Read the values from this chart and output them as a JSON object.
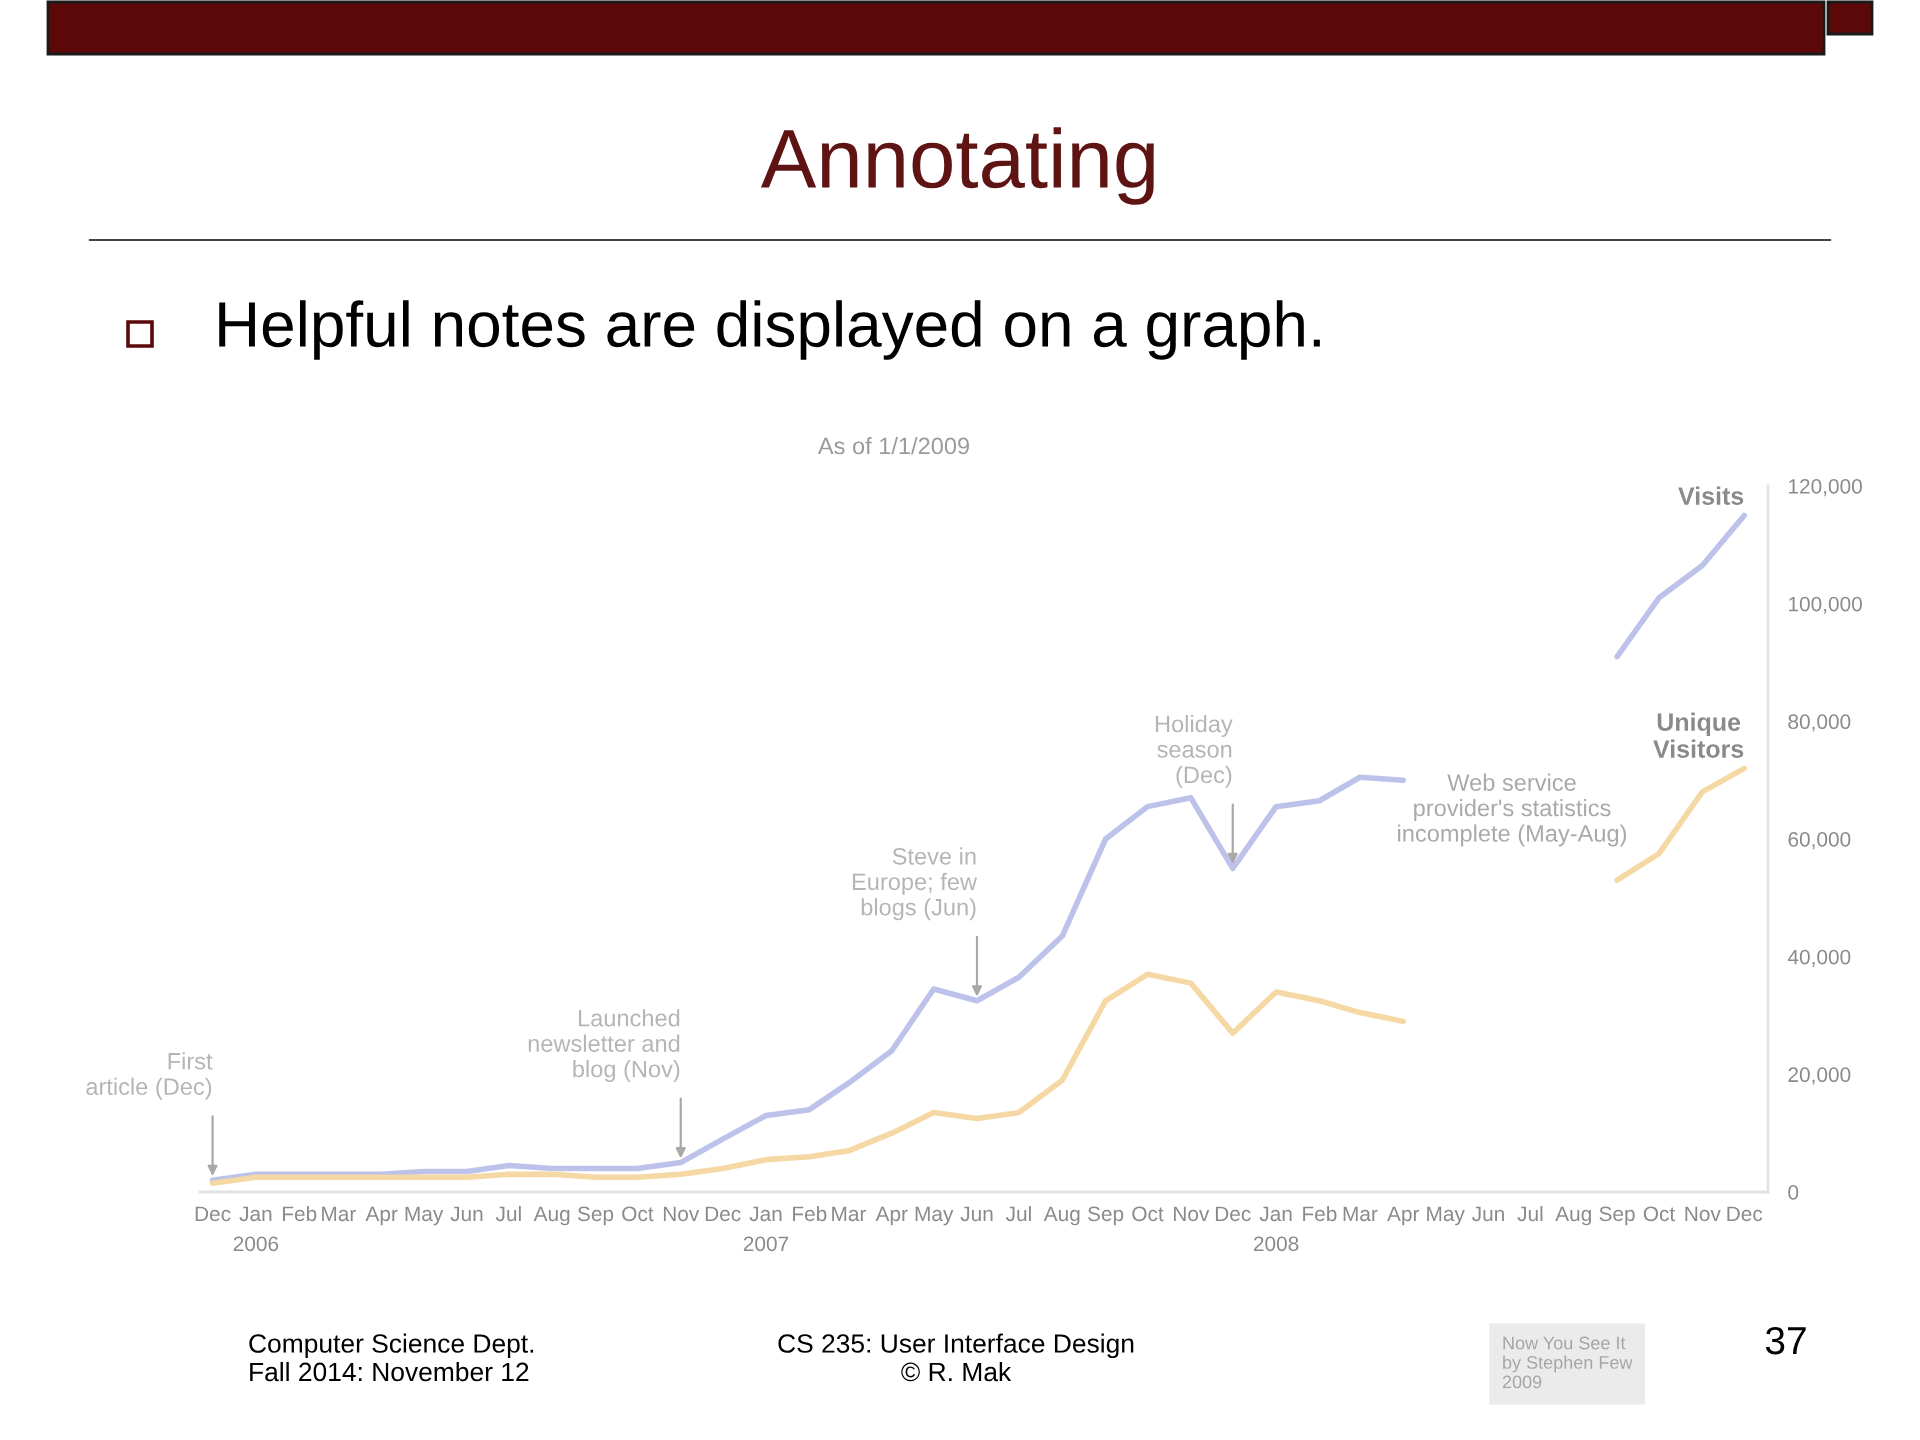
{
  "chart_data": {
    "type": "line",
    "title": "Annotating",
    "subtitle": "Helpful notes are displayed on a graph.",
    "annotations": [
      {
        "text": "First\narticle (Dec)",
        "x": "2005-12",
        "y": 2000
      },
      {
        "text": "Launched\nnewsletter and\nblog (Nov)",
        "x": "2006-11",
        "y": 5000
      },
      {
        "text": "Steve in\nEurope; few\nblogs (Jun)",
        "x": "2007-06",
        "y": 32500
      },
      {
        "text": "Holiday\nseason\n(Dec)",
        "x": "2007-12",
        "y": 55000
      },
      "As of 1/1/2009",
      "Web service\nprovider's statistics\nincomplete (May-Aug)",
      "Computer Science Dept.\nFall 2014: November 12",
      "CS 235: User Interface Design\n© R. Mak",
      "Now You See It\nby Stephen Few\n2009",
      "37"
    ],
    "x": [
      "2005-12",
      "2006-01",
      "2006-02",
      "2006-03",
      "2006-04",
      "2006-05",
      "2006-06",
      "2006-07",
      "2006-08",
      "2006-09",
      "2006-10",
      "2006-11",
      "2006-12",
      "2007-01",
      "2007-02",
      "2007-03",
      "2007-04",
      "2007-05",
      "2007-06",
      "2007-07",
      "2007-08",
      "2007-09",
      "2007-10",
      "2007-11",
      "2007-12",
      "2008-01",
      "2008-02",
      "2008-03",
      "2008-04",
      "2008-05",
      "2008-06",
      "2008-07",
      "2008-08",
      "2008-09",
      "2008-10",
      "2008-11",
      "2008-12"
    ],
    "series": [
      {
        "name": "Visits",
        "color": "#bcc2ea",
        "values": [
          2000,
          3000,
          3000,
          3000,
          3000,
          3500,
          3500,
          4500,
          4000,
          4000,
          4000,
          5000,
          9000,
          13000,
          14000,
          18500,
          24000,
          34500,
          32500,
          36500,
          43500,
          60000,
          65500,
          67000,
          55000,
          65500,
          66500,
          70500,
          70000,
          null,
          null,
          null,
          null,
          91000,
          101000,
          106500,
          115000
        ]
      },
      {
        "name": "Unique\nVisitors",
        "color": "#f5d8a4",
        "values": [
          1500,
          2500,
          2500,
          2500,
          2500,
          2500,
          2500,
          3000,
          3000,
          2500,
          2500,
          3000,
          4000,
          5500,
          6000,
          7000,
          10000,
          13500,
          12500,
          13500,
          19000,
          32500,
          37000,
          35500,
          27000,
          34000,
          32500,
          30500,
          29000,
          null,
          null,
          null,
          null,
          53000,
          57500,
          68000,
          72000
        ]
      }
    ],
    "xlim": [
      "2005-11-22",
      "2008-12-18"
    ],
    "ylim": [
      0,
      120000
    ],
    "xticks": [
      {
        "value": "2005-12",
        "label": "Dec"
      },
      {
        "value": "2006-01",
        "label": "Jan\n2006"
      },
      {
        "value": "2006-02",
        "label": "Feb"
      },
      {
        "value": "2006-03",
        "label": "Mar"
      },
      {
        "value": "2006-04",
        "label": "Apr"
      },
      {
        "value": "2006-05",
        "label": "May"
      },
      {
        "value": "2006-06",
        "label": "Jun"
      },
      {
        "value": "2006-07",
        "label": "Jul"
      },
      {
        "value": "2006-08",
        "label": "Aug"
      },
      {
        "value": "2006-09",
        "label": "Sep"
      },
      {
        "value": "2006-10",
        "label": "Oct"
      },
      {
        "value": "2006-11",
        "label": "Nov"
      },
      {
        "value": "2006-12",
        "label": "Dec"
      },
      {
        "value": "2007-01",
        "label": "Jan\n2007"
      },
      {
        "value": "2007-02",
        "label": "Feb"
      },
      {
        "value": "2007-03",
        "label": "Mar"
      },
      {
        "value": "2007-04",
        "label": "Apr"
      },
      {
        "value": "2007-05",
        "label": "May"
      },
      {
        "value": "2007-06",
        "label": "Jun"
      },
      {
        "value": "2007-07",
        "label": "Jul"
      },
      {
        "value": "2007-08",
        "label": "Aug"
      },
      {
        "value": "2007-09",
        "label": "Sep"
      },
      {
        "value": "2007-10",
        "label": "Oct"
      },
      {
        "value": "2007-11",
        "label": "Nov"
      },
      {
        "value": "2007-12",
        "label": "Dec"
      },
      {
        "value": "2008-01",
        "label": "Jan\n2008"
      },
      {
        "value": "2008-02",
        "label": "Feb"
      },
      {
        "value": "2008-03",
        "label": "Mar"
      },
      {
        "value": "2008-04",
        "label": "Apr"
      },
      {
        "value": "2008-05",
        "label": "May"
      },
      {
        "value": "2008-06",
        "label": "Jun"
      },
      {
        "value": "2008-07",
        "label": "Jul"
      },
      {
        "value": "2008-08",
        "label": "Aug"
      },
      {
        "value": "2008-09",
        "label": "Sep"
      },
      {
        "value": "2008-10",
        "label": "Oct"
      },
      {
        "value": "2008-11",
        "label": "Nov"
      },
      {
        "value": "2008-12",
        "label": "Dec"
      }
    ],
    "yticks": [
      0,
      {
        "value": 20000,
        "label": "20,000"
      },
      {
        "value": 40000,
        "label": "40,000"
      },
      {
        "value": 60000,
        "label": "60,000"
      },
      {
        "value": 80000,
        "label": "80,000"
      },
      {
        "value": 100000,
        "label": "100,000"
      },
      {
        "value": 120000,
        "label": "120,000"
      }
    ]
  }
}
